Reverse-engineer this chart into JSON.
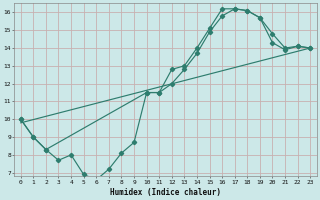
{
  "xlabel": "Humidex (Indice chaleur)",
  "xlim": [
    -0.5,
    23.5
  ],
  "ylim": [
    6.8,
    16.5
  ],
  "yticks": [
    7,
    8,
    9,
    10,
    11,
    12,
    13,
    14,
    15,
    16
  ],
  "xticks": [
    0,
    1,
    2,
    3,
    4,
    5,
    6,
    7,
    8,
    9,
    10,
    11,
    12,
    13,
    14,
    15,
    16,
    17,
    18,
    19,
    20,
    21,
    22,
    23
  ],
  "line_color": "#2e7d6e",
  "bg_color": "#cce8e8",
  "grid_color": "#c8b0b0",
  "line1_x": [
    0,
    1,
    2,
    3,
    4,
    5,
    6,
    7,
    8,
    9,
    10,
    11,
    12,
    13,
    14,
    15,
    16,
    17,
    18,
    19,
    20,
    21,
    22,
    23
  ],
  "line1_y": [
    10.0,
    9.0,
    8.3,
    7.7,
    8.0,
    6.9,
    6.6,
    7.2,
    8.1,
    8.7,
    11.5,
    11.5,
    12.8,
    13.0,
    14.0,
    15.1,
    16.2,
    16.2,
    16.1,
    15.7,
    14.8,
    14.0,
    14.1,
    14.0
  ],
  "line2_x": [
    0,
    1,
    2,
    10,
    11,
    12,
    13,
    14,
    15,
    16,
    17,
    18,
    19,
    20,
    21,
    22,
    23
  ],
  "line2_y": [
    10.0,
    9.0,
    8.3,
    11.5,
    11.5,
    12.0,
    12.8,
    13.7,
    14.9,
    15.8,
    16.2,
    16.1,
    15.7,
    14.3,
    13.9,
    14.1,
    14.0
  ],
  "line3_x": [
    0,
    23
  ],
  "line3_y": [
    9.8,
    14.0
  ]
}
